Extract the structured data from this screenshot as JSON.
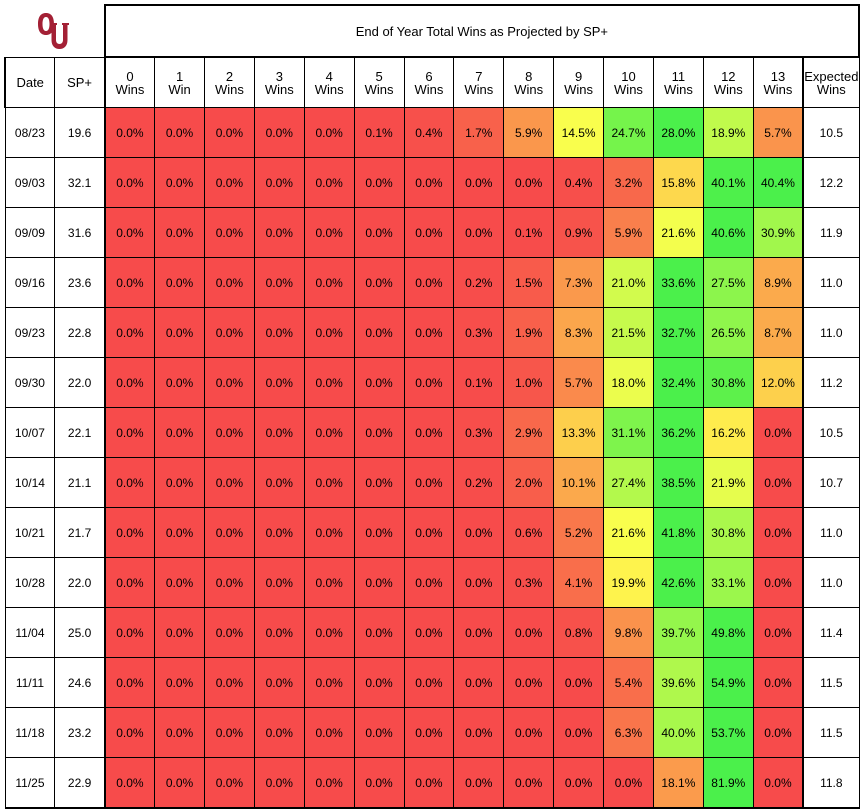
{
  "chart_data": {
    "type": "table",
    "title": "End of Year Total Wins as Projected by SP+",
    "columns": {
      "date": "Date",
      "sp": "SP+",
      "wins": [
        [
          "0",
          "Wins"
        ],
        [
          "1",
          "Win"
        ],
        [
          "2",
          "Wins"
        ],
        [
          "3",
          "Wins"
        ],
        [
          "4",
          "Wins"
        ],
        [
          "5",
          "Wins"
        ],
        [
          "6",
          "Wins"
        ],
        [
          "7",
          "Wins"
        ],
        [
          "8",
          "Wins"
        ],
        [
          "9",
          "Wins"
        ],
        [
          "10",
          "Wins"
        ],
        [
          "11",
          "Wins"
        ],
        [
          "12",
          "Wins"
        ],
        [
          "13",
          "Wins"
        ]
      ],
      "expected": [
        "Expected",
        "Wins"
      ]
    },
    "rows": [
      {
        "date": "08/23",
        "sp": "19.6",
        "probs": [
          0.0,
          0.0,
          0.0,
          0.0,
          0.0,
          0.1,
          0.4,
          1.7,
          5.9,
          14.5,
          24.7,
          28.0,
          18.9,
          5.7
        ],
        "expected": "10.5"
      },
      {
        "date": "09/03",
        "sp": "32.1",
        "probs": [
          0.0,
          0.0,
          0.0,
          0.0,
          0.0,
          0.0,
          0.0,
          0.0,
          0.0,
          0.4,
          3.2,
          15.8,
          40.1,
          40.4
        ],
        "expected": "12.2"
      },
      {
        "date": "09/09",
        "sp": "31.6",
        "probs": [
          0.0,
          0.0,
          0.0,
          0.0,
          0.0,
          0.0,
          0.0,
          0.0,
          0.1,
          0.9,
          5.9,
          21.6,
          40.6,
          30.9
        ],
        "expected": "11.9"
      },
      {
        "date": "09/16",
        "sp": "23.6",
        "probs": [
          0.0,
          0.0,
          0.0,
          0.0,
          0.0,
          0.0,
          0.0,
          0.2,
          1.5,
          7.3,
          21.0,
          33.6,
          27.5,
          8.9
        ],
        "expected": "11.0"
      },
      {
        "date": "09/23",
        "sp": "22.8",
        "probs": [
          0.0,
          0.0,
          0.0,
          0.0,
          0.0,
          0.0,
          0.0,
          0.3,
          1.9,
          8.3,
          21.5,
          32.7,
          26.5,
          8.7
        ],
        "expected": "11.0"
      },
      {
        "date": "09/30",
        "sp": "22.0",
        "probs": [
          0.0,
          0.0,
          0.0,
          0.0,
          0.0,
          0.0,
          0.0,
          0.1,
          1.0,
          5.7,
          18.0,
          32.4,
          30.8,
          12.0
        ],
        "expected": "11.2"
      },
      {
        "date": "10/07",
        "sp": "22.1",
        "probs": [
          0.0,
          0.0,
          0.0,
          0.0,
          0.0,
          0.0,
          0.0,
          0.3,
          2.9,
          13.3,
          31.1,
          36.2,
          16.2,
          0.0
        ],
        "expected": "10.5"
      },
      {
        "date": "10/14",
        "sp": "21.1",
        "probs": [
          0.0,
          0.0,
          0.0,
          0.0,
          0.0,
          0.0,
          0.0,
          0.2,
          2.0,
          10.1,
          27.4,
          38.5,
          21.9,
          0.0
        ],
        "expected": "10.7"
      },
      {
        "date": "10/21",
        "sp": "21.7",
        "probs": [
          0.0,
          0.0,
          0.0,
          0.0,
          0.0,
          0.0,
          0.0,
          0.0,
          0.6,
          5.2,
          21.6,
          41.8,
          30.8,
          0.0
        ],
        "expected": "11.0"
      },
      {
        "date": "10/28",
        "sp": "22.0",
        "probs": [
          0.0,
          0.0,
          0.0,
          0.0,
          0.0,
          0.0,
          0.0,
          0.0,
          0.3,
          4.1,
          19.9,
          42.6,
          33.1,
          0.0
        ],
        "expected": "11.0"
      },
      {
        "date": "11/04",
        "sp": "25.0",
        "probs": [
          0.0,
          0.0,
          0.0,
          0.0,
          0.0,
          0.0,
          0.0,
          0.0,
          0.0,
          0.8,
          9.8,
          39.7,
          49.8,
          0.0
        ],
        "expected": "11.4"
      },
      {
        "date": "11/11",
        "sp": "24.6",
        "probs": [
          0.0,
          0.0,
          0.0,
          0.0,
          0.0,
          0.0,
          0.0,
          0.0,
          0.0,
          0.0,
          5.4,
          39.6,
          54.9,
          0.0
        ],
        "expected": "11.5"
      },
      {
        "date": "11/18",
        "sp": "23.2",
        "probs": [
          0.0,
          0.0,
          0.0,
          0.0,
          0.0,
          0.0,
          0.0,
          0.0,
          0.0,
          0.0,
          6.3,
          40.0,
          53.7,
          0.0
        ],
        "expected": "11.5"
      },
      {
        "date": "11/25",
        "sp": "22.9",
        "probs": [
          0.0,
          0.0,
          0.0,
          0.0,
          0.0,
          0.0,
          0.0,
          0.0,
          0.0,
          0.0,
          0.0,
          18.1,
          81.9,
          0.0
        ],
        "expected": "11.8"
      }
    ],
    "color_scale": {
      "low": "#f74b4b",
      "mid": "#ffff4d",
      "high": "#4bf04b",
      "orange": "#fb9a4a"
    }
  },
  "logo": {
    "icon": "oklahoma-ou-logo-icon",
    "color": "#a32035"
  }
}
